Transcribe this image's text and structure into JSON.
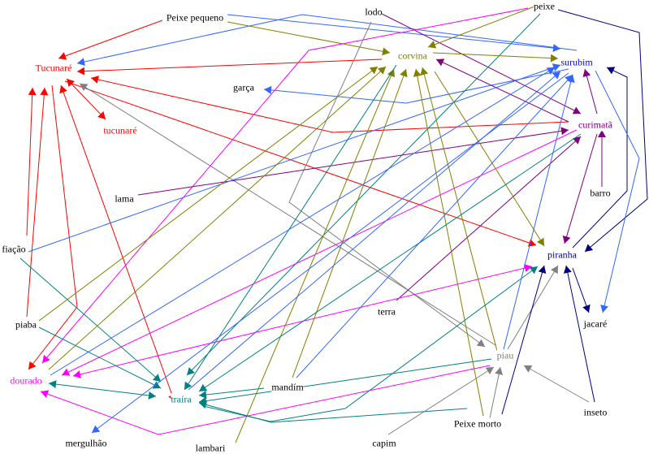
{
  "nodes": [
    {
      "id": "peixe_pequeno",
      "label": "Peixe pequeno",
      "color": "#000000"
    },
    {
      "id": "lodo",
      "label": "lodo",
      "color": "#000000"
    },
    {
      "id": "peixe",
      "label": "peixe",
      "color": "#000000"
    },
    {
      "id": "tucunare",
      "label": "Tucunaré",
      "color": "#ff0000"
    },
    {
      "id": "corvina",
      "label": "corvina",
      "color": "#808000"
    },
    {
      "id": "surubim",
      "label": "surubim",
      "color": "#0000ff"
    },
    {
      "id": "garca",
      "label": "garça",
      "color": "#000000"
    },
    {
      "id": "tucunare2",
      "label": "tucunaré",
      "color": "#ff0000"
    },
    {
      "id": "curimata",
      "label": "curimatã",
      "color": "#800080"
    },
    {
      "id": "lama",
      "label": "lama",
      "color": "#000000"
    },
    {
      "id": "barro",
      "label": "barro",
      "color": "#000000"
    },
    {
      "id": "fiacao",
      "label": "fiação",
      "color": "#000000"
    },
    {
      "id": "piranha",
      "label": "piranha",
      "color": "#000080"
    },
    {
      "id": "piaba",
      "label": "piaba",
      "color": "#000000"
    },
    {
      "id": "terra",
      "label": "terra",
      "color": "#000000"
    },
    {
      "id": "jacare",
      "label": "jacaré",
      "color": "#000000"
    },
    {
      "id": "piau",
      "label": "piau",
      "color": "#808080"
    },
    {
      "id": "dourado",
      "label": "dourado",
      "color": "#ff00ff"
    },
    {
      "id": "mandim",
      "label": "mandím",
      "color": "#000000"
    },
    {
      "id": "traira",
      "label": "traíra",
      "color": "#008080"
    },
    {
      "id": "inseto",
      "label": "inseto",
      "color": "#000000"
    },
    {
      "id": "peixe_morto",
      "label": "Peixe morto",
      "color": "#000000"
    },
    {
      "id": "mergulhao",
      "label": "mergulhão",
      "color": "#000000"
    },
    {
      "id": "capim",
      "label": "capim",
      "color": "#000000"
    },
    {
      "id": "lambari",
      "label": "lambari",
      "color": "#000000"
    }
  ],
  "edges": [
    {
      "from": "peixe_pequeno",
      "to": "tucunare",
      "color": "#ff0000"
    },
    {
      "from": "surubim",
      "to": "tucunare",
      "color": "#3366ff"
    },
    {
      "from": "peixe_pequeno",
      "to": "surubim",
      "color": "#3366ff"
    },
    {
      "from": "peixe_pequeno",
      "to": "corvina",
      "color": "#808000"
    },
    {
      "from": "corvina",
      "to": "tucunare",
      "color": "#ff0000"
    },
    {
      "from": "curimata",
      "to": "tucunare",
      "color": "#ff0000"
    },
    {
      "from": "tucunare",
      "to": "piranha",
      "color": "#ff0000"
    },
    {
      "from": "tucunare",
      "to": "tucunare2",
      "color": "#ff0000",
      "both": true
    },
    {
      "from": "piau",
      "to": "tucunare",
      "color": "#808080"
    },
    {
      "from": "tucunare",
      "to": "traira",
      "color": "#ff0000",
      "both": true
    },
    {
      "from": "fiacao",
      "to": "tucunare",
      "color": "#ff0000"
    },
    {
      "from": "piaba",
      "to": "tucunare",
      "color": "#ff0000"
    },
    {
      "from": "tucunare",
      "to": "dourado",
      "color": "#ff0000"
    },
    {
      "from": "surubim",
      "to": "garca",
      "color": "#3366ff"
    },
    {
      "from": "lodo",
      "to": "curimata",
      "color": "#800080"
    },
    {
      "from": "curimata",
      "to": "corvina",
      "color": "#800080"
    },
    {
      "from": "peixe",
      "to": "corvina",
      "color": "#808000"
    },
    {
      "from": "peixe",
      "to": "dourado",
      "color": "#ff00ff"
    },
    {
      "from": "peixe",
      "to": "traira",
      "color": "#008080"
    },
    {
      "from": "peixe",
      "to": "piranha",
      "color": "#000080"
    },
    {
      "from": "corvina",
      "to": "surubim",
      "color": "#808000"
    },
    {
      "from": "lodo",
      "to": "piau",
      "color": "#808080"
    },
    {
      "from": "piranha",
      "to": "surubim",
      "color": "#000080"
    },
    {
      "from": "surubim",
      "to": "jacare",
      "color": "#3366ff"
    },
    {
      "from": "curimata",
      "to": "surubim",
      "color": "#800080"
    },
    {
      "from": "barro",
      "to": "curimata",
      "color": "#800080"
    },
    {
      "from": "curimata",
      "to": "piranha",
      "color": "#800080"
    },
    {
      "from": "lama",
      "to": "curimata",
      "color": "#800080"
    },
    {
      "from": "terra",
      "to": "curimata",
      "color": "#800080"
    },
    {
      "from": "curimata",
      "to": "dourado",
      "color": "#ff00ff"
    },
    {
      "from": "dourado",
      "to": "piranha",
      "color": "#ff00ff",
      "both": true
    },
    {
      "from": "piau",
      "to": "dourado",
      "color": "#ff00ff"
    },
    {
      "from": "dourado",
      "to": "traira",
      "color": "#008080",
      "both": true
    },
    {
      "from": "piaba",
      "to": "traira",
      "color": "#008080"
    },
    {
      "from": "fiacao",
      "to": "traira",
      "color": "#008080"
    },
    {
      "from": "fiacao",
      "to": "surubim",
      "color": "#3366ff"
    },
    {
      "from": "piaba",
      "to": "corvina",
      "color": "#808000"
    },
    {
      "from": "dourado",
      "to": "corvina",
      "color": "#808000"
    },
    {
      "from": "lambari",
      "to": "corvina",
      "color": "#808000"
    },
    {
      "from": "mandim",
      "to": "corvina",
      "color": "#808000"
    },
    {
      "from": "peixe_morto",
      "to": "corvina",
      "color": "#808000"
    },
    {
      "from": "piau",
      "to": "corvina",
      "color": "#808000"
    },
    {
      "from": "corvina",
      "to": "piranha",
      "color": "#808000"
    },
    {
      "from": "piau",
      "to": "traira",
      "color": "#008080"
    },
    {
      "from": "curimata",
      "to": "traira",
      "color": "#008080"
    },
    {
      "from": "peixe_morto",
      "to": "traira",
      "color": "#008080"
    },
    {
      "from": "mandim",
      "to": "traira",
      "color": "#008080"
    },
    {
      "from": "corvina",
      "to": "traira",
      "color": "#008080"
    },
    {
      "from": "traira",
      "to": "piranha",
      "color": "#008080"
    },
    {
      "from": "dourado",
      "to": "surubim",
      "color": "#3366ff"
    },
    {
      "from": "traira",
      "to": "surubim",
      "color": "#3366ff"
    },
    {
      "from": "surubim",
      "to": "mergulhao",
      "color": "#3366ff"
    },
    {
      "from": "mandim",
      "to": "surubim",
      "color": "#3366ff"
    },
    {
      "from": "piau",
      "to": "surubim",
      "color": "#3366ff"
    },
    {
      "from": "peixe_morto",
      "to": "piau",
      "color": "#808080"
    },
    {
      "from": "capim",
      "to": "piau",
      "color": "#808080"
    },
    {
      "from": "inseto",
      "to": "piau",
      "color": "#808080"
    },
    {
      "from": "piau",
      "to": "piranha",
      "color": "#808080"
    },
    {
      "from": "peixe_morto",
      "to": "piranha",
      "color": "#000080"
    },
    {
      "from": "inseto",
      "to": "piranha",
      "color": "#000080"
    },
    {
      "from": "piranha",
      "to": "jacare",
      "color": "#000080"
    }
  ]
}
